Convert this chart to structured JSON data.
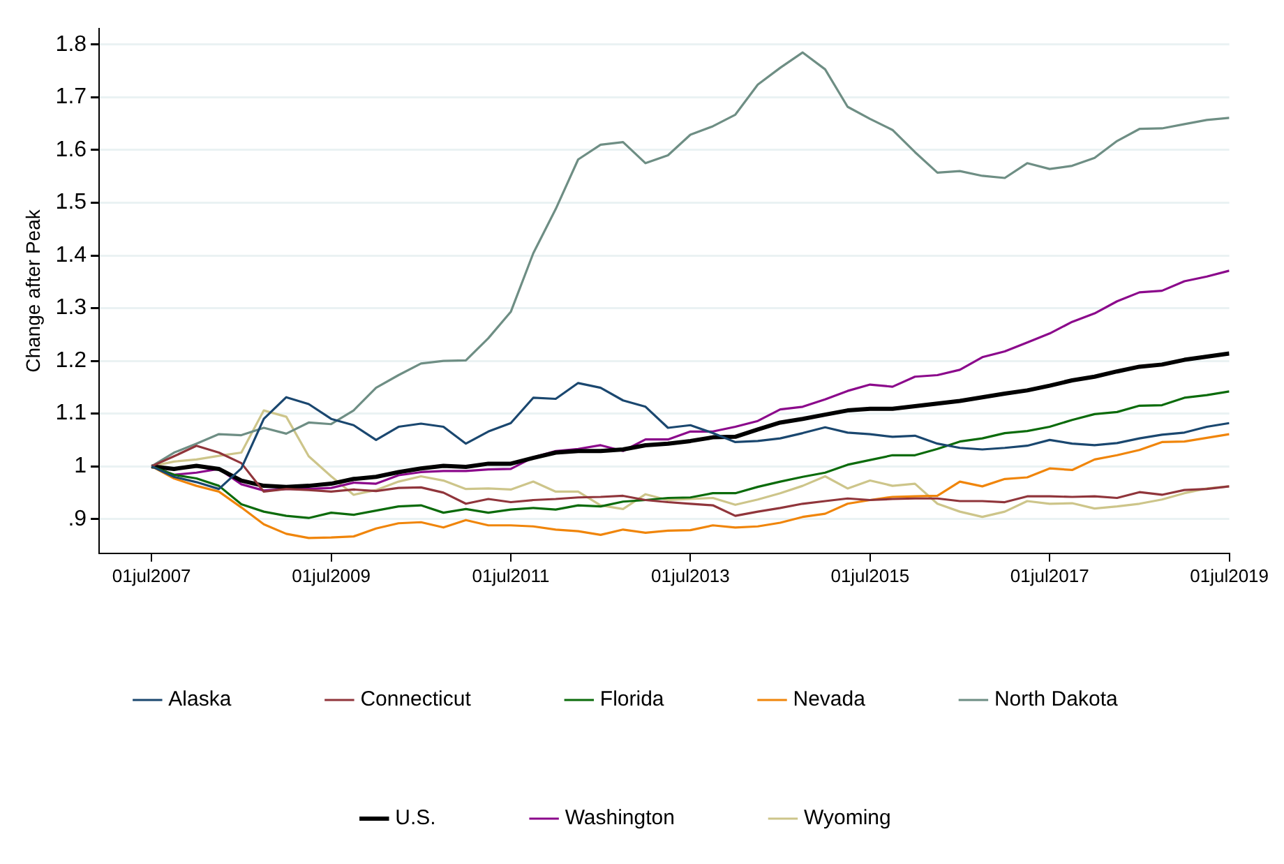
{
  "chart_data": {
    "type": "line",
    "ylabel": "Change after Peak",
    "x": [
      "2007-07",
      "2007-10",
      "2008-01",
      "2008-04",
      "2008-07",
      "2008-10",
      "2009-01",
      "2009-04",
      "2009-07",
      "2009-10",
      "2010-01",
      "2010-04",
      "2010-07",
      "2010-10",
      "2011-01",
      "2011-04",
      "2011-07",
      "2011-10",
      "2012-01",
      "2012-04",
      "2012-07",
      "2012-10",
      "2013-01",
      "2013-04",
      "2013-07",
      "2013-10",
      "2014-01",
      "2014-04",
      "2014-07",
      "2014-10",
      "2015-01",
      "2015-04",
      "2015-07",
      "2015-10",
      "2016-01",
      "2016-04",
      "2016-07",
      "2016-10",
      "2017-01",
      "2017-04",
      "2017-07",
      "2017-10",
      "2018-01",
      "2018-04",
      "2018-07",
      "2018-10",
      "2019-01",
      "2019-04",
      "2019-07"
    ],
    "xlim": [
      "2006-12",
      "2019-07"
    ],
    "xticks": [
      {
        "value": "2007-07-01",
        "label": "01jul2007"
      },
      {
        "value": "2009-07-01",
        "label": "01jul2009"
      },
      {
        "value": "2011-07-01",
        "label": "01jul2011"
      },
      {
        "value": "2013-07-01",
        "label": "01jul2013"
      },
      {
        "value": "2015-07-01",
        "label": "01jul2015"
      },
      {
        "value": "2017-07-01",
        "label": "01jul2017"
      },
      {
        "value": "2019-07-01",
        "label": "01jul2019"
      }
    ],
    "ylim": [
      0.835,
      1.83
    ],
    "yticks": [
      {
        "value": 0.9,
        "label": ".9"
      },
      1,
      1.1,
      1.2,
      1.3,
      1.4,
      1.5,
      1.6,
      1.7,
      1.8
    ],
    "grid": "y",
    "legend": "bottom",
    "line_style": "solid",
    "marker": "none",
    "series": [
      {
        "name": "Alaska",
        "color": "#1a476f",
        "values": [
          1.0,
          0.98,
          0.97,
          0.957,
          0.996,
          1.09,
          1.131,
          1.118,
          1.09,
          1.078,
          1.05,
          1.075,
          1.081,
          1.075,
          1.043,
          1.066,
          1.082,
          1.13,
          1.128,
          1.158,
          1.149,
          1.125,
          1.113,
          1.073,
          1.078,
          1.063,
          1.046,
          1.048,
          1.053,
          1.063,
          1.074,
          1.064,
          1.061,
          1.056,
          1.058,
          1.043,
          1.035,
          1.032,
          1.035,
          1.039,
          1.05,
          1.043,
          1.04,
          1.044,
          1.053,
          1.06,
          1.064,
          1.075,
          1.082
        ]
      },
      {
        "name": "Connecticut",
        "color": "#90353b",
        "values": [
          1.0,
          1.019,
          1.039,
          1.026,
          1.006,
          0.952,
          0.957,
          0.955,
          0.952,
          0.956,
          0.953,
          0.959,
          0.96,
          0.95,
          0.929,
          0.938,
          0.932,
          0.936,
          0.938,
          0.941,
          0.942,
          0.944,
          0.936,
          0.932,
          0.929,
          0.926,
          0.906,
          0.914,
          0.921,
          0.929,
          0.934,
          0.939,
          0.936,
          0.938,
          0.939,
          0.939,
          0.934,
          0.934,
          0.932,
          0.943,
          0.943,
          0.942,
          0.943,
          0.94,
          0.951,
          0.946,
          0.955,
          0.957,
          0.962
        ]
      },
      {
        "name": "Florida",
        "color": "#0b6b0b",
        "values": [
          1.0,
          0.984,
          0.977,
          0.963,
          0.928,
          0.914,
          0.906,
          0.902,
          0.912,
          0.908,
          0.916,
          0.924,
          0.926,
          0.912,
          0.919,
          0.912,
          0.918,
          0.921,
          0.918,
          0.926,
          0.924,
          0.933,
          0.936,
          0.94,
          0.941,
          0.949,
          0.949,
          0.961,
          0.971,
          0.98,
          0.988,
          1.003,
          1.012,
          1.021,
          1.021,
          1.033,
          1.047,
          1.053,
          1.063,
          1.067,
          1.075,
          1.088,
          1.099,
          1.103,
          1.115,
          1.116,
          1.13,
          1.135,
          1.142
        ]
      },
      {
        "name": "Nevada",
        "color": "#f0850a",
        "values": [
          1.0,
          0.977,
          0.963,
          0.952,
          0.922,
          0.89,
          0.872,
          0.864,
          0.865,
          0.867,
          0.882,
          0.892,
          0.894,
          0.884,
          0.898,
          0.888,
          0.888,
          0.886,
          0.88,
          0.877,
          0.87,
          0.88,
          0.874,
          0.878,
          0.879,
          0.888,
          0.884,
          0.886,
          0.893,
          0.904,
          0.91,
          0.929,
          0.936,
          0.942,
          0.943,
          0.944,
          0.971,
          0.962,
          0.976,
          0.979,
          0.996,
          0.993,
          1.013,
          1.021,
          1.031,
          1.046,
          1.047,
          1.054,
          1.061
        ]
      },
      {
        "name": "North Dakota",
        "color": "#6e8e84",
        "values": [
          1.0,
          1.026,
          1.043,
          1.061,
          1.059,
          1.073,
          1.062,
          1.083,
          1.08,
          1.106,
          1.149,
          1.173,
          1.195,
          1.2,
          1.201,
          1.243,
          1.293,
          1.404,
          1.488,
          1.582,
          1.61,
          1.615,
          1.575,
          1.59,
          1.629,
          1.645,
          1.667,
          1.724,
          1.756,
          1.785,
          1.753,
          1.682,
          1.659,
          1.638,
          1.596,
          1.557,
          1.56,
          1.551,
          1.547,
          1.575,
          1.564,
          1.57,
          1.585,
          1.617,
          1.64,
          1.641,
          1.649,
          1.657,
          1.661
        ]
      },
      {
        "name": "U.S.",
        "color": "#000000",
        "values": [
          1.0,
          0.995,
          1.001,
          0.995,
          0.973,
          0.963,
          0.961,
          0.963,
          0.967,
          0.976,
          0.98,
          0.989,
          0.996,
          1.001,
          0.999,
          1.005,
          1.005,
          1.016,
          1.026,
          1.029,
          1.029,
          1.032,
          1.04,
          1.043,
          1.048,
          1.055,
          1.056,
          1.07,
          1.083,
          1.09,
          1.098,
          1.106,
          1.109,
          1.109,
          1.114,
          1.119,
          1.124,
          1.131,
          1.138,
          1.144,
          1.153,
          1.163,
          1.17,
          1.18,
          1.189,
          1.193,
          1.202,
          1.208,
          1.214
        ]
      },
      {
        "name": "Washington",
        "color": "#8b088b",
        "values": [
          1.0,
          0.984,
          0.988,
          0.995,
          0.966,
          0.954,
          0.957,
          0.957,
          0.959,
          0.969,
          0.967,
          0.983,
          0.989,
          0.991,
          0.991,
          0.994,
          0.995,
          1.017,
          1.029,
          1.033,
          1.04,
          1.029,
          1.051,
          1.051,
          1.066,
          1.066,
          1.075,
          1.086,
          1.108,
          1.113,
          1.127,
          1.143,
          1.155,
          1.151,
          1.17,
          1.173,
          1.183,
          1.207,
          1.218,
          1.235,
          1.252,
          1.274,
          1.29,
          1.313,
          1.33,
          1.333,
          1.351,
          1.36,
          1.371
        ]
      },
      {
        "name": "Wyoming",
        "color": "#cdc58a",
        "values": [
          1.0,
          1.009,
          1.013,
          1.02,
          1.026,
          1.106,
          1.094,
          1.019,
          0.981,
          0.946,
          0.955,
          0.971,
          0.981,
          0.973,
          0.957,
          0.958,
          0.956,
          0.971,
          0.952,
          0.952,
          0.926,
          0.919,
          0.947,
          0.936,
          0.938,
          0.94,
          0.927,
          0.937,
          0.949,
          0.963,
          0.981,
          0.958,
          0.973,
          0.963,
          0.967,
          0.929,
          0.914,
          0.904,
          0.914,
          0.934,
          0.929,
          0.93,
          0.92,
          0.924,
          0.929,
          0.937,
          0.949,
          0.958,
          0.962
        ]
      }
    ]
  }
}
